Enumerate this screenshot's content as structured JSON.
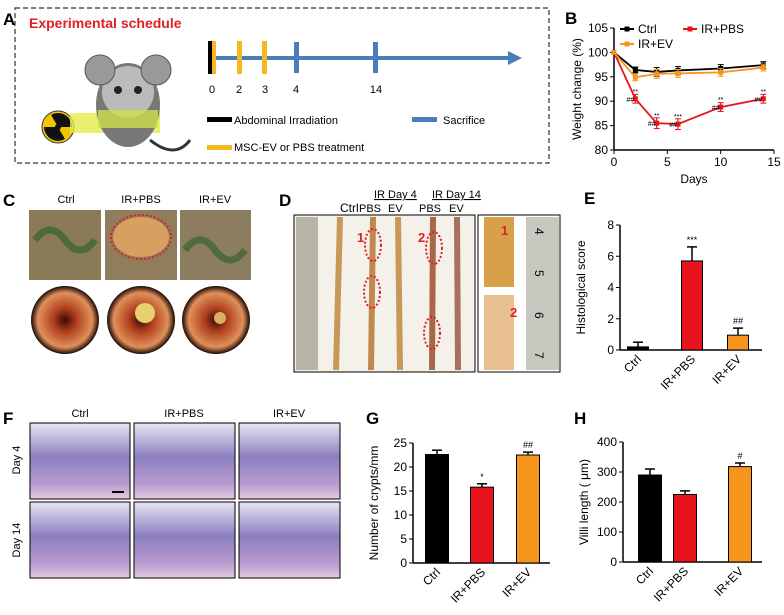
{
  "panels": {
    "A": {
      "label": "A",
      "title": "Experimental schedule",
      "timeline_days": [
        "0",
        "2",
        "3",
        "4",
        "14"
      ],
      "legend": {
        "irradiation": "Abdominal Irradiation",
        "sacrifice": "Sacrifice",
        "treatment": "MSC-EV or PBS  treatment"
      },
      "colors": {
        "title": "#e02020",
        "irradiation": "#000000",
        "treatment": "#f5b820",
        "sacrifice": "#4a7ebb"
      }
    },
    "B": {
      "label": "B"
    },
    "C": {
      "label": "C",
      "columns": [
        "Ctrl",
        "IR+PBS",
        "IR+EV"
      ]
    },
    "D": {
      "label": "D",
      "headers": {
        "ctrl": "Ctrl",
        "day4": "IR  Day 4",
        "day14": "IR  Day 14",
        "pbs1": "PBS",
        "ev1": "EV",
        "pbs2": "PBS",
        "ev2": "EV"
      },
      "markers": [
        "1",
        "2"
      ],
      "ruler_ticks": [
        "4",
        "5",
        "6",
        "7"
      ]
    },
    "E": {
      "label": "E"
    },
    "F": {
      "label": "F",
      "columns": [
        "Ctrl",
        "IR+PBS",
        "IR+EV"
      ],
      "rows": [
        "Day 4",
        "Day 14"
      ]
    },
    "G": {
      "label": "G"
    },
    "H": {
      "label": "H"
    }
  },
  "chart_data": [
    {
      "panel": "B",
      "type": "line",
      "xlabel": "Days",
      "ylabel": "Weight change (%)",
      "xlim": [
        0,
        15
      ],
      "ylim": [
        80,
        105
      ],
      "xticks": [
        "0",
        "5",
        "10",
        "15"
      ],
      "yticks": [
        "80",
        "85",
        "90",
        "95",
        "100",
        "105"
      ],
      "legend_position": "top",
      "x": [
        0,
        2,
        4,
        6,
        10,
        14
      ],
      "series": [
        {
          "name": "Ctrl",
          "color": "#000000",
          "values": [
            100,
            96.4,
            96.0,
            96.3,
            96.7,
            97.4
          ],
          "errors": [
            0,
            0.6,
            0.9,
            0.8,
            0.8,
            0.7
          ]
        },
        {
          "name": "IR+PBS",
          "color": "#e8141c",
          "values": [
            100,
            90.5,
            85.5,
            85.3,
            88.8,
            90.5
          ],
          "errors": [
            0,
            0.9,
            1.1,
            1.1,
            0.9,
            0.9
          ],
          "annotations": [
            [
              "",
              ""
            ],
            [
              "**",
              "##"
            ],
            [
              "**",
              "##"
            ],
            [
              "***",
              "##"
            ],
            [
              "**",
              "##"
            ],
            [
              "**",
              "##"
            ]
          ]
        },
        {
          "name": "IR+EV",
          "color": "#f7941d",
          "values": [
            100,
            94.9,
            95.6,
            95.7,
            95.9,
            96.9
          ],
          "errors": [
            0,
            0.7,
            0.9,
            0.8,
            0.8,
            0.7
          ]
        }
      ]
    },
    {
      "panel": "E",
      "type": "bar",
      "ylabel": "Histological score",
      "ylim": [
        0,
        8
      ],
      "yticks": [
        "0",
        "2",
        "4",
        "6",
        "8"
      ],
      "categories": [
        "Ctrl",
        "IR+PBS",
        "IR+EV"
      ],
      "values": [
        0.2,
        5.7,
        0.95
      ],
      "errors": [
        0.3,
        0.9,
        0.45
      ],
      "annotations": [
        "",
        "***",
        "##"
      ],
      "colors": [
        "#000000",
        "#e8141c",
        "#f7941d"
      ]
    },
    {
      "panel": "G",
      "type": "bar",
      "ylabel": "Number of crypts/mm",
      "ylim": [
        0,
        25
      ],
      "yticks": [
        "0",
        "5",
        "10",
        "15",
        "20",
        "25"
      ],
      "categories": [
        "Ctrl",
        "IR+PBS",
        "IR+EV"
      ],
      "values": [
        22.6,
        15.8,
        22.5
      ],
      "errors": [
        0.9,
        0.7,
        0.6
      ],
      "annotations": [
        "",
        "*",
        "##"
      ],
      "colors": [
        "#000000",
        "#e8141c",
        "#f7941d"
      ]
    },
    {
      "panel": "H",
      "type": "bar",
      "ylabel": "Villi length ( μm)",
      "ylim": [
        0,
        400
      ],
      "yticks": [
        "0",
        "100",
        "200",
        "300",
        "400"
      ],
      "categories": [
        "Ctrl",
        "IR+PBS",
        "IR+EV"
      ],
      "values": [
        290,
        225,
        318
      ],
      "errors": [
        20,
        12,
        12
      ],
      "annotations": [
        "",
        "",
        "#"
      ],
      "colors": [
        "#000000",
        "#e8141c",
        "#f7941d"
      ]
    }
  ]
}
